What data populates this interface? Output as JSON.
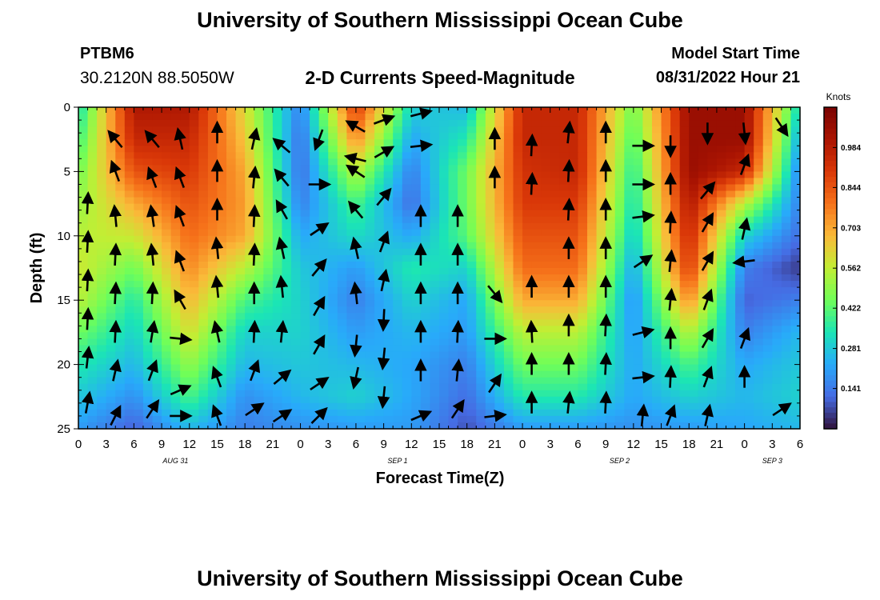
{
  "page": {
    "title": "University of Southern Mississippi Ocean Cube",
    "footer_title": "University of Southern Mississippi Ocean Cube"
  },
  "station": {
    "id": "PTBM6",
    "coords": "30.2120N  88.5050W"
  },
  "model": {
    "label": "Model Start Time",
    "start": "08/31/2022 Hour 21"
  },
  "chart_data": {
    "type": "heatmap",
    "title": "2-D Currents Speed-Magnitude",
    "xlabel": "Forecast Time(Z)",
    "ylabel": "Depth (ft)",
    "x_ticks": [
      "0",
      "3",
      "6",
      "9",
      "12",
      "15",
      "18",
      "21",
      "0",
      "3",
      "6",
      "9",
      "12",
      "15",
      "18",
      "21",
      "0",
      "3",
      "6",
      "9",
      "12",
      "15",
      "18",
      "21",
      "0",
      "3",
      "6"
    ],
    "x_hours_range": [
      0,
      78
    ],
    "date_labels": [
      {
        "label": "AUG 31",
        "hour": 10.5
      },
      {
        "label": "SEP 1",
        "hour": 34.5
      },
      {
        "label": "SEP 2",
        "hour": 58.5
      },
      {
        "label": "SEP 3",
        "hour": 75
      }
    ],
    "y_ticks": [
      0,
      5,
      10,
      15,
      20,
      25
    ],
    "ylim": [
      0,
      25
    ],
    "y_inverted": true,
    "colorbar": {
      "unit": "Knots",
      "tick_labels": [
        "0.984",
        "0.844",
        "0.703",
        "0.562",
        "0.422",
        "0.281",
        "0.141"
      ],
      "range": [
        0.0,
        1.125
      ]
    },
    "grid_hours": [
      0,
      6,
      12,
      18,
      24,
      30,
      36,
      42,
      48,
      54,
      60,
      66,
      72,
      78
    ],
    "grid_depths": [
      0,
      2.5,
      5,
      7.5,
      10,
      12.5,
      15,
      17.5,
      20,
      22.5,
      25
    ],
    "speed_grid": [
      [
        0.32,
        1.0,
        1.0,
        0.6,
        0.15,
        0.9,
        0.3,
        0.25,
        0.95,
        0.95,
        0.45,
        1.05,
        1.05,
        0.3
      ],
      [
        0.38,
        0.95,
        0.95,
        0.65,
        0.12,
        0.75,
        0.22,
        0.35,
        0.95,
        0.95,
        0.4,
        1.05,
        1.05,
        0.22
      ],
      [
        0.45,
        0.85,
        0.9,
        0.7,
        0.12,
        0.55,
        0.15,
        0.45,
        0.92,
        0.95,
        0.35,
        1.05,
        0.95,
        0.15
      ],
      [
        0.5,
        0.7,
        0.85,
        0.72,
        0.15,
        0.4,
        0.12,
        0.45,
        0.9,
        0.9,
        0.32,
        1.0,
        0.55,
        0.15
      ],
      [
        0.55,
        0.58,
        0.8,
        0.7,
        0.22,
        0.32,
        0.22,
        0.42,
        0.85,
        0.85,
        0.28,
        0.95,
        0.3,
        0.12
      ],
      [
        0.58,
        0.45,
        0.75,
        0.55,
        0.28,
        0.2,
        0.35,
        0.3,
        0.8,
        0.8,
        0.22,
        0.9,
        0.15,
        0.05
      ],
      [
        0.55,
        0.35,
        0.68,
        0.4,
        0.3,
        0.15,
        0.3,
        0.22,
        0.7,
        0.7,
        0.18,
        0.75,
        0.1,
        0.15
      ],
      [
        0.45,
        0.3,
        0.6,
        0.3,
        0.3,
        0.2,
        0.25,
        0.2,
        0.55,
        0.55,
        0.2,
        0.55,
        0.15,
        0.25
      ],
      [
        0.35,
        0.25,
        0.5,
        0.25,
        0.28,
        0.25,
        0.22,
        0.15,
        0.45,
        0.45,
        0.22,
        0.4,
        0.22,
        0.28
      ],
      [
        0.28,
        0.18,
        0.4,
        0.18,
        0.25,
        0.3,
        0.22,
        0.12,
        0.35,
        0.35,
        0.22,
        0.3,
        0.25,
        0.3
      ],
      [
        0.2,
        0.1,
        0.25,
        0.15,
        0.18,
        0.2,
        0.2,
        0.08,
        0.2,
        0.2,
        0.18,
        0.2,
        0.22,
        0.25
      ]
    ],
    "arrows": [
      {
        "hour": 1,
        "depth": 23,
        "u": 0.15,
        "v": 0.8
      },
      {
        "hour": 1,
        "depth": 19.5,
        "u": 0.1,
        "v": 0.9
      },
      {
        "hour": 1,
        "depth": 16.5,
        "u": 0.05,
        "v": 1
      },
      {
        "hour": 1,
        "depth": 13.5,
        "u": 0.05,
        "v": 1
      },
      {
        "hour": 1,
        "depth": 10.5,
        "u": 0.05,
        "v": 1
      },
      {
        "hour": 1,
        "depth": 7.5,
        "u": 0.05,
        "v": 1
      },
      {
        "hour": 4,
        "depth": 24,
        "u": 0.3,
        "v": 0.6
      },
      {
        "hour": 4,
        "depth": 20.5,
        "u": 0.2,
        "v": 0.9
      },
      {
        "hour": 4,
        "depth": 17.5,
        "u": 0.05,
        "v": 1
      },
      {
        "hour": 4,
        "depth": 14.5,
        "u": 0.05,
        "v": 1
      },
      {
        "hour": 4,
        "depth": 11.5,
        "u": 0.05,
        "v": 1
      },
      {
        "hour": 4,
        "depth": 8.5,
        "u": -0.1,
        "v": 1
      },
      {
        "hour": 4,
        "depth": 5,
        "u": -0.3,
        "v": 0.8
      },
      {
        "hour": 4,
        "depth": 2.5,
        "u": -0.5,
        "v": 0.6
      },
      {
        "hour": 8,
        "depth": 23.5,
        "u": 0.4,
        "v": 0.6
      },
      {
        "hour": 8,
        "depth": 20.5,
        "u": 0.3,
        "v": 0.8
      },
      {
        "hour": 8,
        "depth": 17.5,
        "u": 0.15,
        "v": 0.9
      },
      {
        "hour": 8,
        "depth": 14.5,
        "u": 0.05,
        "v": 1
      },
      {
        "hour": 8,
        "depth": 11.5,
        "u": -0.1,
        "v": 1
      },
      {
        "hour": 8,
        "depth": 8.5,
        "u": -0.15,
        "v": 1
      },
      {
        "hour": 8,
        "depth": 5.5,
        "u": -0.3,
        "v": 0.8
      },
      {
        "hour": 8,
        "depth": 2.5,
        "u": -0.5,
        "v": 0.6
      },
      {
        "hour": 11,
        "depth": 24,
        "u": 1,
        "v": 0
      },
      {
        "hour": 11,
        "depth": 22,
        "u": 0.7,
        "v": 0.3
      },
      {
        "hour": 11,
        "depth": 18,
        "u": 1,
        "v": -0.1
      },
      {
        "hour": 11,
        "depth": 15,
        "u": -0.4,
        "v": 0.7
      },
      {
        "hour": 11,
        "depth": 12,
        "u": -0.3,
        "v": 0.8
      },
      {
        "hour": 11,
        "depth": 8.5,
        "u": -0.3,
        "v": 0.8
      },
      {
        "hour": 11,
        "depth": 5.5,
        "u": -0.3,
        "v": 0.8
      },
      {
        "hour": 11,
        "depth": 2.5,
        "u": -0.2,
        "v": 0.9
      },
      {
        "hour": 15,
        "depth": 24,
        "u": -0.3,
        "v": 0.8
      },
      {
        "hour": 15,
        "depth": 21,
        "u": -0.3,
        "v": 0.8
      },
      {
        "hour": 15,
        "depth": 17.5,
        "u": -0.2,
        "v": 0.9
      },
      {
        "hour": 15,
        "depth": 14,
        "u": -0.1,
        "v": 1
      },
      {
        "hour": 15,
        "depth": 11,
        "u": -0.1,
        "v": 1
      },
      {
        "hour": 15,
        "depth": 8,
        "u": 0,
        "v": 1
      },
      {
        "hour": 15,
        "depth": 5,
        "u": 0,
        "v": 1
      },
      {
        "hour": 15,
        "depth": 2,
        "u": 0,
        "v": 1
      },
      {
        "hour": 19,
        "depth": 23.5,
        "u": 0.6,
        "v": 0.4
      },
      {
        "hour": 19,
        "depth": 20.5,
        "u": 0.3,
        "v": 0.8
      },
      {
        "hour": 19,
        "depth": 17.5,
        "u": 0.05,
        "v": 1
      },
      {
        "hour": 19,
        "depth": 14.5,
        "u": 0,
        "v": 1
      },
      {
        "hour": 19,
        "depth": 11.5,
        "u": 0.05,
        "v": 1
      },
      {
        "hour": 19,
        "depth": 8.5,
        "u": 0.05,
        "v": 1
      },
      {
        "hour": 19,
        "depth": 5.5,
        "u": 0.1,
        "v": 1
      },
      {
        "hour": 19,
        "depth": 2.5,
        "u": 0.2,
        "v": 0.9
      },
      {
        "hour": 22,
        "depth": 24,
        "u": 0.6,
        "v": 0.4
      },
      {
        "hour": 22,
        "depth": 21,
        "u": 0.6,
        "v": 0.5
      },
      {
        "hour": 22,
        "depth": 17.5,
        "u": 0.1,
        "v": 1
      },
      {
        "hour": 22,
        "depth": 14,
        "u": -0.1,
        "v": 1
      },
      {
        "hour": 22,
        "depth": 11,
        "u": -0.2,
        "v": 0.9
      },
      {
        "hour": 22,
        "depth": 8,
        "u": -0.4,
        "v": 0.7
      },
      {
        "hour": 22,
        "depth": 5.5,
        "u": -0.5,
        "v": 0.6
      },
      {
        "hour": 22,
        "depth": 3,
        "u": -0.6,
        "v": 0.5
      },
      {
        "hour": 26,
        "depth": 24,
        "u": 0.5,
        "v": 0.5
      },
      {
        "hour": 26,
        "depth": 21.5,
        "u": 0.6,
        "v": 0.4
      },
      {
        "hour": 26,
        "depth": 18.5,
        "u": 0.4,
        "v": 0.7
      },
      {
        "hour": 26,
        "depth": 15.5,
        "u": 0.4,
        "v": 0.7
      },
      {
        "hour": 26,
        "depth": 12.5,
        "u": 0.5,
        "v": 0.6
      },
      {
        "hour": 26,
        "depth": 9.5,
        "u": 0.6,
        "v": 0.4
      },
      {
        "hour": 26,
        "depth": 6,
        "u": 1,
        "v": 0
      },
      {
        "hour": 26,
        "depth": 2.5,
        "u": -0.3,
        "v": -0.8
      },
      {
        "hour": 30,
        "depth": 21,
        "u": -0.2,
        "v": -0.9
      },
      {
        "hour": 30,
        "depth": 18.5,
        "u": -0.1,
        "v": -1
      },
      {
        "hour": 30,
        "depth": 14.5,
        "u": -0.1,
        "v": 0.9
      },
      {
        "hour": 30,
        "depth": 11,
        "u": -0.2,
        "v": 0.9
      },
      {
        "hour": 30,
        "depth": 8,
        "u": -0.5,
        "v": 0.6
      },
      {
        "hour": 30,
        "depth": 5,
        "u": -0.6,
        "v": 0.4
      },
      {
        "hour": 30,
        "depth": 1.5,
        "u": -0.7,
        "v": 0.4
      },
      {
        "hour": 30,
        "depth": 4,
        "u": -0.8,
        "v": 0.2
      },
      {
        "hour": 33,
        "depth": 22.5,
        "u": -0.1,
        "v": -1
      },
      {
        "hour": 33,
        "depth": 19.5,
        "u": -0.1,
        "v": -1
      },
      {
        "hour": 33,
        "depth": 16.5,
        "u": -0.05,
        "v": -1
      },
      {
        "hour": 33,
        "depth": 13.5,
        "u": 0.2,
        "v": 0.9
      },
      {
        "hour": 33,
        "depth": 10.5,
        "u": 0.3,
        "v": 0.8
      },
      {
        "hour": 33,
        "depth": 7,
        "u": 0.5,
        "v": 0.6
      },
      {
        "hour": 33,
        "depth": 3.5,
        "u": 0.7,
        "v": 0.4
      },
      {
        "hour": 33,
        "depth": 1,
        "u": 0.8,
        "v": 0.3
      },
      {
        "hour": 37,
        "depth": 24,
        "u": 0.7,
        "v": 0.3
      },
      {
        "hour": 37,
        "depth": 20.5,
        "u": 0,
        "v": 1
      },
      {
        "hour": 37,
        "depth": 17.5,
        "u": 0,
        "v": 1
      },
      {
        "hour": 37,
        "depth": 14.5,
        "u": 0,
        "v": 1
      },
      {
        "hour": 37,
        "depth": 11.5,
        "u": 0,
        "v": 1
      },
      {
        "hour": 37,
        "depth": 8.5,
        "u": 0,
        "v": 1
      },
      {
        "hour": 37,
        "depth": 3,
        "u": 0.9,
        "v": 0.1
      },
      {
        "hour": 37,
        "depth": 0.5,
        "u": 0.8,
        "v": 0.2
      },
      {
        "hour": 41,
        "depth": 23.5,
        "u": 0.4,
        "v": 0.6
      },
      {
        "hour": 41,
        "depth": 20.5,
        "u": 0.1,
        "v": 1
      },
      {
        "hour": 41,
        "depth": 17.5,
        "u": 0.05,
        "v": 1
      },
      {
        "hour": 41,
        "depth": 14.5,
        "u": 0,
        "v": 1
      },
      {
        "hour": 41,
        "depth": 11.5,
        "u": 0,
        "v": 1
      },
      {
        "hour": 41,
        "depth": 8.5,
        "u": 0,
        "v": 1
      },
      {
        "hour": 45,
        "depth": 24,
        "u": 0.8,
        "v": 0.1
      },
      {
        "hour": 45,
        "depth": 21.5,
        "u": 0.4,
        "v": 0.6
      },
      {
        "hour": 45,
        "depth": 18,
        "u": 0.8,
        "v": 0
      },
      {
        "hour": 45,
        "depth": 14.5,
        "u": 0.5,
        "v": -0.6
      },
      {
        "hour": 45,
        "depth": 2.5,
        "u": 0,
        "v": 1
      },
      {
        "hour": 45,
        "depth": 5.5,
        "u": 0,
        "v": 1
      },
      {
        "hour": 49,
        "depth": 23,
        "u": 0,
        "v": 1
      },
      {
        "hour": 49,
        "depth": 20,
        "u": 0,
        "v": 1
      },
      {
        "hour": 49,
        "depth": 17.5,
        "u": -0.05,
        "v": 1
      },
      {
        "hour": 49,
        "depth": 14,
        "u": 0,
        "v": 1
      },
      {
        "hour": 49,
        "depth": 3,
        "u": 0.05,
        "v": 1
      },
      {
        "hour": 49,
        "depth": 6,
        "u": 0.05,
        "v": 1
      },
      {
        "hour": 53,
        "depth": 23,
        "u": 0.1,
        "v": 1
      },
      {
        "hour": 53,
        "depth": 20,
        "u": 0,
        "v": 1
      },
      {
        "hour": 53,
        "depth": 17,
        "u": 0,
        "v": 1
      },
      {
        "hour": 53,
        "depth": 14,
        "u": 0,
        "v": 1
      },
      {
        "hour": 53,
        "depth": 11,
        "u": 0,
        "v": 1
      },
      {
        "hour": 53,
        "depth": 8,
        "u": 0.05,
        "v": 1
      },
      {
        "hour": 53,
        "depth": 5,
        "u": 0.05,
        "v": 1
      },
      {
        "hour": 53,
        "depth": 2,
        "u": 0.1,
        "v": 1
      },
      {
        "hour": 57,
        "depth": 23,
        "u": 0.05,
        "v": 1
      },
      {
        "hour": 57,
        "depth": 20,
        "u": 0.05,
        "v": 1
      },
      {
        "hour": 57,
        "depth": 17,
        "u": 0.05,
        "v": 1
      },
      {
        "hour": 57,
        "depth": 14,
        "u": 0,
        "v": 1
      },
      {
        "hour": 57,
        "depth": 11,
        "u": 0,
        "v": 1
      },
      {
        "hour": 57,
        "depth": 8,
        "u": 0,
        "v": 1
      },
      {
        "hour": 57,
        "depth": 5,
        "u": 0,
        "v": 1
      },
      {
        "hour": 57,
        "depth": 2,
        "u": 0,
        "v": 1
      },
      {
        "hour": 61,
        "depth": 24,
        "u": 0.1,
        "v": 1
      },
      {
        "hour": 61,
        "depth": 21,
        "u": 0.9,
        "v": 0.1
      },
      {
        "hour": 61,
        "depth": 17.5,
        "u": 0.8,
        "v": 0.2
      },
      {
        "hour": 61,
        "depth": 12,
        "u": 0.6,
        "v": 0.4
      },
      {
        "hour": 61,
        "depth": 8.5,
        "u": 0.8,
        "v": 0.1
      },
      {
        "hour": 61,
        "depth": 6,
        "u": 1,
        "v": 0
      },
      {
        "hour": 61,
        "depth": 3,
        "u": 0.9,
        "v": 0
      },
      {
        "hour": 64,
        "depth": 24,
        "u": 0.3,
        "v": 0.8
      },
      {
        "hour": 64,
        "depth": 21,
        "u": 0.05,
        "v": 1
      },
      {
        "hour": 64,
        "depth": 18,
        "u": 0,
        "v": 1
      },
      {
        "hour": 64,
        "depth": 15,
        "u": 0.1,
        "v": 1
      },
      {
        "hour": 64,
        "depth": 12,
        "u": 0.1,
        "v": 1
      },
      {
        "hour": 64,
        "depth": 9,
        "u": 0.05,
        "v": 1
      },
      {
        "hour": 64,
        "depth": 6,
        "u": 0,
        "v": 1
      },
      {
        "hour": 64,
        "depth": 3,
        "u": 0,
        "v": -1
      },
      {
        "hour": 68,
        "depth": 24,
        "u": 0.2,
        "v": 0.9
      },
      {
        "hour": 68,
        "depth": 21,
        "u": 0.3,
        "v": 0.8
      },
      {
        "hour": 68,
        "depth": 18,
        "u": 0.4,
        "v": 0.7
      },
      {
        "hour": 68,
        "depth": 15,
        "u": 0.3,
        "v": 0.8
      },
      {
        "hour": 68,
        "depth": 12,
        "u": 0.4,
        "v": 0.7
      },
      {
        "hour": 68,
        "depth": 9,
        "u": 0.4,
        "v": 0.7
      },
      {
        "hour": 68,
        "depth": 6.5,
        "u": 0.5,
        "v": 0.6
      },
      {
        "hour": 68,
        "depth": 2,
        "u": 0,
        "v": -1
      },
      {
        "hour": 72,
        "depth": 21,
        "u": 0,
        "v": 1
      },
      {
        "hour": 72,
        "depth": 18,
        "u": 0.3,
        "v": 0.8
      },
      {
        "hour": 72,
        "depth": 12,
        "u": -0.8,
        "v": -0.1
      },
      {
        "hour": 72,
        "depth": 9.5,
        "u": 0.2,
        "v": 0.9
      },
      {
        "hour": 72,
        "depth": 4.5,
        "u": 0.3,
        "v": 0.8
      },
      {
        "hour": 72,
        "depth": 2,
        "u": 0.1,
        "v": -1
      },
      {
        "hour": 76,
        "depth": 23.5,
        "u": 0.6,
        "v": 0.4
      },
      {
        "hour": 76,
        "depth": 1.5,
        "u": 0.4,
        "v": -0.6
      }
    ]
  }
}
